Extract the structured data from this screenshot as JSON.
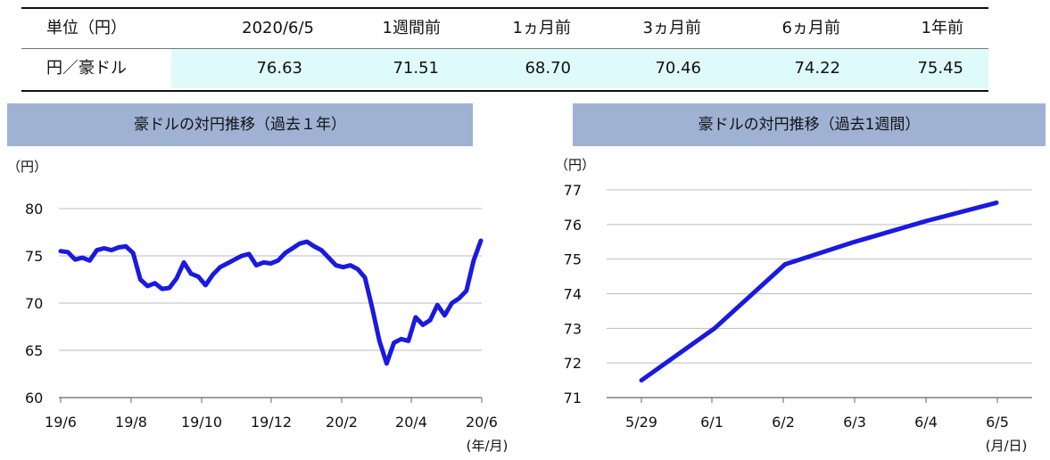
{
  "rate_table": {
    "headers": [
      "単位（円）",
      "2020/6/5",
      "1週間前",
      "1ヵ月前",
      "3ヵ月前",
      "6ヵ月前",
      "1年前"
    ],
    "row_label": "円／豪ドル",
    "values": [
      "76.63",
      "71.51",
      "68.70",
      "70.46",
      "74.22",
      "75.45"
    ],
    "highlight_color": "#dffafa"
  },
  "chart_data": [
    {
      "type": "line",
      "title": "豪ドルの対円推移（過去１年）",
      "ylabel": "（円）",
      "xlabel": "(年/月)",
      "ylim": [
        60,
        80
      ],
      "yticks": [
        "60",
        "65",
        "70",
        "75",
        "80"
      ],
      "x_ticks": [
        "19/6",
        "19/8",
        "19/10",
        "19/12",
        "20/2",
        "20/4",
        "20/6"
      ],
      "grid": true,
      "line_color": "#1a1adf",
      "series": [
        {
          "values": [
            75.5,
            75.4,
            74.6,
            74.8,
            74.5,
            75.6,
            75.8,
            75.6,
            75.9,
            76.0,
            75.3,
            72.5,
            71.8,
            72.1,
            71.5,
            71.6,
            72.6,
            74.3,
            73.1,
            72.8,
            71.9,
            73.0,
            73.8,
            74.2,
            74.6,
            75.0,
            75.2,
            74.0,
            74.3,
            74.2,
            74.5,
            75.3,
            75.8,
            76.3,
            76.5,
            76.0,
            75.6,
            74.8,
            74.0,
            73.8,
            74.0,
            73.6,
            72.7,
            69.5,
            66.0,
            63.6,
            65.8,
            66.2,
            66.0,
            68.5,
            67.7,
            68.2,
            69.8,
            68.7,
            70.0,
            70.5,
            71.3,
            74.5,
            76.6
          ]
        }
      ]
    },
    {
      "type": "line",
      "title": "豪ドルの対円推移（過去1週間）",
      "ylabel": "（円）",
      "xlabel": "(月/日)",
      "ylim": [
        71,
        77
      ],
      "yticks": [
        "71",
        "72",
        "73",
        "74",
        "75",
        "76",
        "77"
      ],
      "categories": [
        "5/29",
        "6/1",
        "6/2",
        "6/3",
        "6/4",
        "6/5"
      ],
      "grid": true,
      "line_color": "#1a1adf",
      "series": [
        {
          "values": [
            71.5,
            73.0,
            74.85,
            75.5,
            76.1,
            76.63
          ]
        }
      ]
    }
  ]
}
